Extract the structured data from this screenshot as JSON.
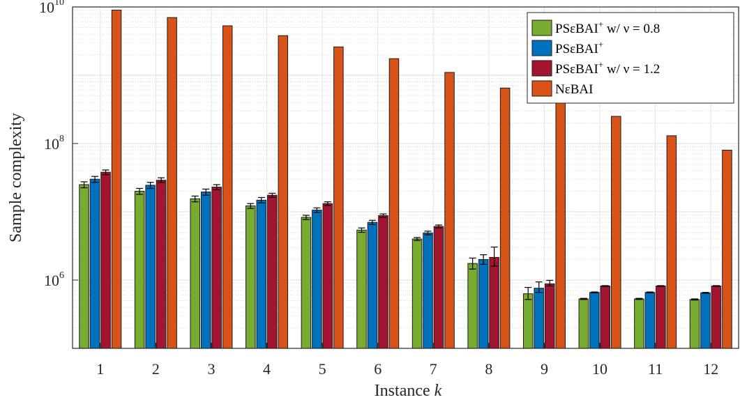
{
  "chart_data": {
    "type": "bar",
    "y_scale": "log",
    "ylim": [
      100000,
      10000000000
    ],
    "grid": true,
    "legend_position": "top-right",
    "xlabel_text": "Instance ",
    "xlabel_var": "k",
    "ylabel": "Sample complexity",
    "categories": [
      "1",
      "2",
      "3",
      "4",
      "5",
      "6",
      "7",
      "8",
      "9",
      "10",
      "11",
      "12"
    ],
    "y_ticks": [
      {
        "value": 1000000,
        "base": "10",
        "exp": "6"
      },
      {
        "value": 100000000,
        "base": "10",
        "exp": "8"
      },
      {
        "value": 10000000000,
        "base": "10",
        "exp": "10"
      }
    ],
    "series": [
      {
        "name": "PSεBAI⁺ w/ ν = 0.8",
        "legend_main": "PSεBAI",
        "legend_sup": "+",
        "legend_tail": " w/ ν = 0.8",
        "color": "#77AC30",
        "values": [
          25000000,
          20000000,
          15500000,
          12200000,
          8300000,
          5400000,
          4000000,
          1750000,
          630000,
          530000,
          530000,
          520000
        ],
        "error_low": [
          22500000,
          18000000,
          14000000,
          11200000,
          7700000,
          5000000,
          3800000,
          1450000,
          520000,
          520000,
          520000,
          510000
        ],
        "error_high": [
          27500000,
          22000000,
          17000000,
          13200000,
          8900000,
          5800000,
          4200000,
          2100000,
          780000,
          540000,
          540000,
          530000
        ]
      },
      {
        "name": "PSεBAI⁺",
        "legend_main": "PSεBAI",
        "legend_sup": "+",
        "legend_tail": "",
        "color": "#0072BD",
        "values": [
          30000000,
          24500000,
          19500000,
          14800000,
          10600000,
          7000000,
          4900000,
          2000000,
          760000,
          660000,
          660000,
          650000
        ],
        "error_low": [
          27000000,
          22000000,
          17500000,
          13500000,
          9800000,
          6500000,
          4600000,
          1700000,
          660000,
          650000,
          650000,
          640000
        ],
        "error_high": [
          33000000,
          27000000,
          21500000,
          16200000,
          11400000,
          7500000,
          5200000,
          2350000,
          940000,
          670000,
          670000,
          660000
        ]
      },
      {
        "name": "PSεBAI⁺ w/ ν = 1.2",
        "legend_main": "PSεBAI",
        "legend_sup": "+",
        "legend_tail": " w/ ν = 1.2",
        "color": "#A2142F",
        "values": [
          38000000,
          29000000,
          23000000,
          17500000,
          13200000,
          8800000,
          6100000,
          2150000,
          880000,
          820000,
          820000,
          820000
        ],
        "error_low": [
          35000000,
          27000000,
          21000000,
          16300000,
          12400000,
          8300000,
          5800000,
          1600000,
          820000,
          810000,
          810000,
          810000
        ],
        "error_high": [
          41000000,
          31500000,
          25000000,
          18700000,
          14000000,
          9300000,
          6400000,
          3050000,
          990000,
          830000,
          830000,
          830000
        ]
      },
      {
        "name": "NεBAI",
        "legend_main": "NεBAI",
        "legend_sup": "",
        "legend_tail": "",
        "color": "#D95319",
        "values": [
          9000000000,
          7000000000,
          5300000000,
          3800000000,
          2600000000,
          1750000000,
          1100000000,
          650000000,
          400000000,
          250000000,
          130000000,
          80000000
        ]
      }
    ]
  }
}
